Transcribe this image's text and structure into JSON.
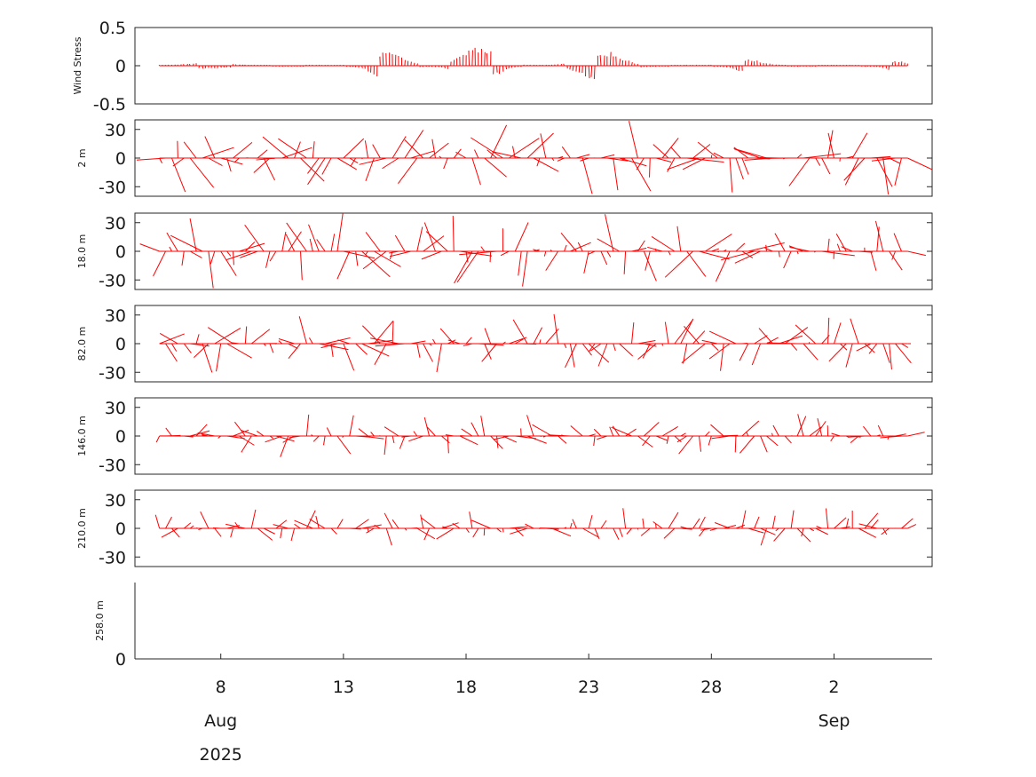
{
  "chart_data": {
    "type": "stick",
    "colors": {
      "sticks": "#ff0000",
      "axes": "#262626",
      "text": "#1a1a1a"
    },
    "x_axis": {
      "range": [
        "2025-08-04 12:00",
        "2025-09-06"
      ],
      "ticks": [
        {
          "date": "2025-08-08",
          "label": "8"
        },
        {
          "date": "2025-08-13",
          "label": "13"
        },
        {
          "date": "2025-08-18",
          "label": "18"
        },
        {
          "date": "2025-08-23",
          "label": "23"
        },
        {
          "date": "2025-08-28",
          "label": "28"
        },
        {
          "date": "2025-09-02",
          "label": "2"
        }
      ],
      "month_labels": [
        {
          "date": "2025-08-08",
          "label": "Aug"
        },
        {
          "date": "2025-09-02",
          "label": "Sep"
        }
      ],
      "year_label": {
        "date": "2025-08-08",
        "label": "2025"
      }
    },
    "panels": [
      {
        "ylabel": "Wind Stress",
        "ylim": [
          -0.5,
          0.5
        ],
        "ytick_labels": [
          "0.5",
          "0",
          "-0.5"
        ],
        "ytick_values": [
          0.5,
          0,
          -0.5
        ],
        "max_speed": 0.2,
        "time_step_h": 3,
        "has_data": true
      },
      {
        "ylabel": "2 m",
        "ylim": [
          -40,
          40
        ],
        "ytick_labels": [
          "30",
          "0",
          "-30"
        ],
        "ytick_values": [
          30,
          0,
          -30
        ],
        "max_speed": 40,
        "time_step_h": 6,
        "has_data": true
      },
      {
        "ylabel": "18.0 m",
        "ylim": [
          -40,
          40
        ],
        "ytick_labels": [
          "30",
          "0",
          "-30"
        ],
        "ytick_values": [
          30,
          0,
          -30
        ],
        "max_speed": 40,
        "time_step_h": 6,
        "has_data": true
      },
      {
        "ylabel": "82.0 m",
        "ylim": [
          -40,
          40
        ],
        "ytick_labels": [
          "30",
          "0",
          "-30"
        ],
        "ytick_values": [
          30,
          0,
          -30
        ],
        "max_speed": 32,
        "time_step_h": 6,
        "has_data": true
      },
      {
        "ylabel": "146.0 m",
        "ylim": [
          -40,
          40
        ],
        "ytick_labels": [
          "30",
          "0",
          "-30"
        ],
        "ytick_values": [
          30,
          0,
          -30
        ],
        "max_speed": 24,
        "time_step_h": 6,
        "has_data": true
      },
      {
        "ylabel": "210.0 m",
        "ylim": [
          -40,
          40
        ],
        "ytick_labels": [
          "30",
          "0",
          "-30"
        ],
        "ytick_values": [
          30,
          0,
          -30
        ],
        "max_speed": 22,
        "time_step_h": 6,
        "has_data": true
      },
      {
        "ylabel": "258.0 m",
        "ylim": [
          0,
          1
        ],
        "ytick_labels": [
          "0"
        ],
        "ytick_values": [
          0
        ],
        "has_data": false
      }
    ],
    "data_start": "2025-08-05 12:00",
    "data_end": "2025-09-05 00:00",
    "note_values": "stick vectors (u,v) plotted from baseline; values read approximately from figure"
  }
}
